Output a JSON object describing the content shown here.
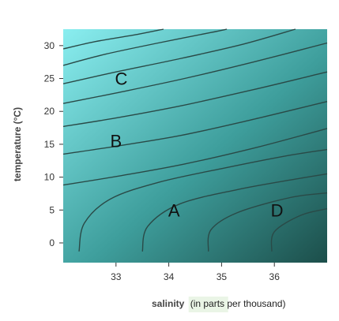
{
  "chart_data": {
    "type": "contour",
    "xlabel": "salinity",
    "xlabel_unit": "(in parts per thousand)",
    "ylabel": "temperature (°C)",
    "xlim": [
      32.0,
      37.0
    ],
    "ylim": [
      -3.0,
      32.5
    ],
    "x_ticks": [
      "33",
      "34",
      "35",
      "36"
    ],
    "x_tick_values": [
      33,
      34,
      35,
      36
    ],
    "y_ticks": [
      "30",
      "25",
      "20",
      "15",
      "10",
      "5",
      "0"
    ],
    "y_tick_values": [
      30,
      25,
      20,
      15,
      10,
      5,
      0
    ],
    "regions": [
      {
        "label": "C",
        "salinity": 33.1,
        "temperature": 25
      },
      {
        "label": "B",
        "salinity": 33.0,
        "temperature": 15.5
      },
      {
        "label": "A",
        "salinity": 34.1,
        "temperature": 5
      },
      {
        "label": "D",
        "salinity": 36.05,
        "temperature": 5
      }
    ],
    "contours": [
      [
        [
          32.0,
          29.5
        ],
        [
          32.6,
          30.6
        ],
        [
          33.4,
          31.7
        ],
        [
          33.9,
          32.5
        ]
      ],
      [
        [
          32.0,
          27.0
        ],
        [
          32.8,
          28.7
        ],
        [
          33.8,
          30.4
        ],
        [
          34.8,
          32.0
        ],
        [
          35.1,
          32.5
        ]
      ],
      [
        [
          32.0,
          24.2
        ],
        [
          33.0,
          26.0
        ],
        [
          34.2,
          28.0
        ],
        [
          35.4,
          30.2
        ],
        [
          36.4,
          32.5
        ]
      ],
      [
        [
          32.0,
          21.2
        ],
        [
          33.0,
          22.8
        ],
        [
          34.3,
          25.0
        ],
        [
          35.6,
          27.5
        ],
        [
          37.0,
          30.4
        ]
      ],
      [
        [
          32.0,
          17.7
        ],
        [
          33.0,
          19.0
        ],
        [
          34.2,
          20.8
        ],
        [
          35.6,
          23.3
        ],
        [
          37.0,
          26.0
        ]
      ],
      [
        [
          32.0,
          13.5
        ],
        [
          33.0,
          14.7
        ],
        [
          34.2,
          16.3
        ],
        [
          35.5,
          18.6
        ],
        [
          37.0,
          21.5
        ]
      ],
      [
        [
          32.0,
          8.8
        ],
        [
          33.0,
          10.1
        ],
        [
          34.3,
          12.0
        ],
        [
          35.7,
          14.6
        ],
        [
          37.0,
          17.4
        ]
      ],
      [
        [
          32.3,
          -1.3
        ],
        [
          32.4,
          3.0
        ],
        [
          32.9,
          6.7
        ],
        [
          33.8,
          9.2
        ],
        [
          35.0,
          11.3
        ],
        [
          36.2,
          13.2
        ],
        [
          37.0,
          14.2
        ]
      ],
      [
        [
          33.5,
          -1.3
        ],
        [
          33.6,
          2.5
        ],
        [
          34.2,
          5.9
        ],
        [
          35.3,
          8.1
        ],
        [
          36.4,
          9.7
        ],
        [
          37.0,
          10.5
        ]
      ],
      [
        [
          34.75,
          -1.3
        ],
        [
          34.8,
          2.0
        ],
        [
          35.3,
          4.6
        ],
        [
          36.3,
          6.9
        ],
        [
          37.0,
          7.6
        ]
      ],
      [
        [
          35.95,
          -1.3
        ],
        [
          36.0,
          1.7
        ],
        [
          36.5,
          4.2
        ],
        [
          37.0,
          5.2
        ]
      ]
    ]
  },
  "colors": {
    "top_left": "#8aeef0",
    "mid": "#3e9e9c",
    "bottom_right": "#1c4e4a",
    "contour_line": "#2a4a47",
    "unit_highlight": "#eaf5e6"
  }
}
